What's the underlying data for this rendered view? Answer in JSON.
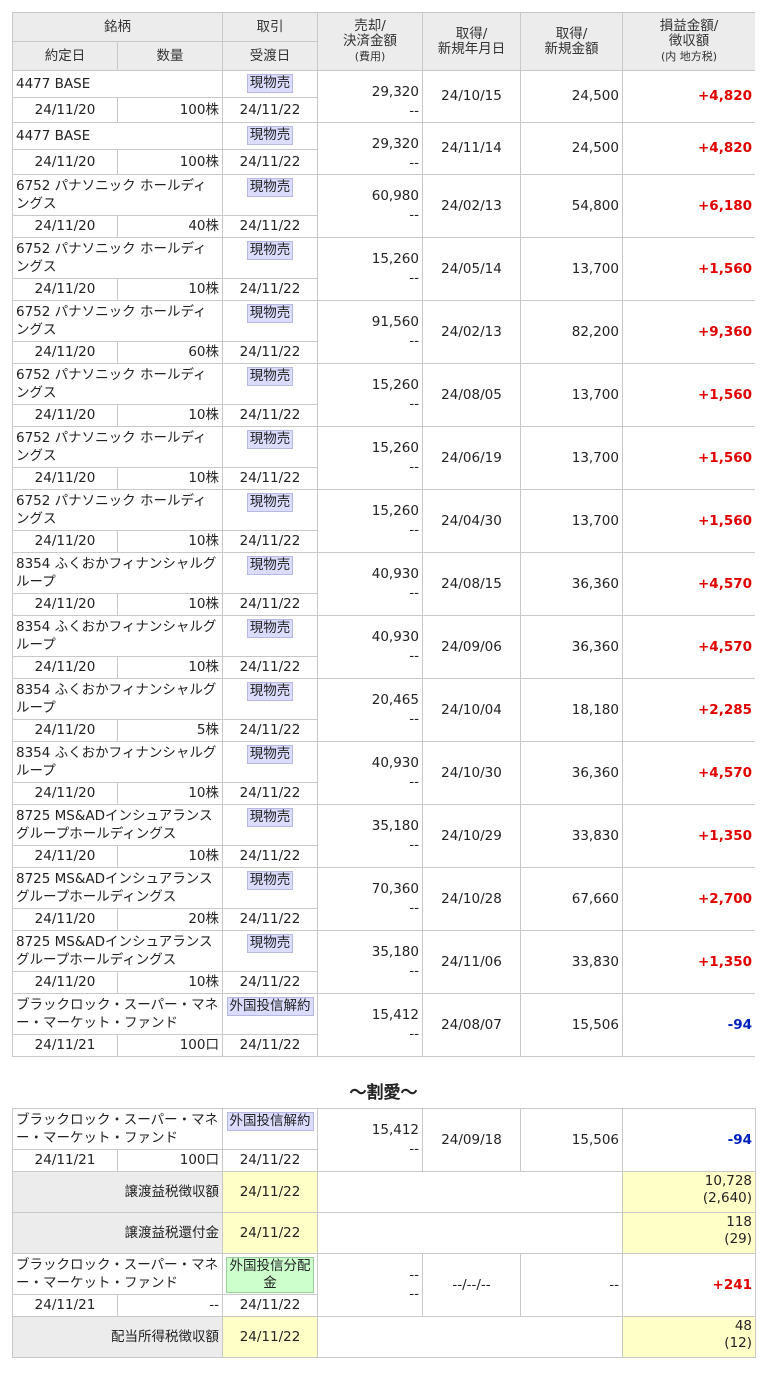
{
  "header": {
    "name": "銘柄",
    "date": "約定日",
    "qty": "数量",
    "trade": "取引",
    "settle": "受渡日",
    "sale": [
      "売却/",
      "決済金額",
      "(費用)"
    ],
    "acq_date": [
      "取得/",
      "新規年月日"
    ],
    "acq_amount": [
      "取得/",
      "新規金額"
    ],
    "pnl": [
      "損益金額/",
      "徴収額",
      "(内 地方税)"
    ]
  },
  "trades": [
    {
      "name": "4477 BASE",
      "trade": "現物売",
      "sale": "29,320",
      "fee": "--",
      "acq_date": "24/10/15",
      "acq_amount": "24,500",
      "pnl": "+4,820",
      "date": "24/11/20",
      "qty": "100株",
      "settle": "24/11/22"
    },
    {
      "name": "4477 BASE",
      "trade": "現物売",
      "sale": "29,320",
      "fee": "--",
      "acq_date": "24/11/14",
      "acq_amount": "24,500",
      "pnl": "+4,820",
      "date": "24/11/20",
      "qty": "100株",
      "settle": "24/11/22"
    },
    {
      "name": "6752 パナソニック ホールディングス",
      "trade": "現物売",
      "sale": "60,980",
      "fee": "--",
      "acq_date": "24/02/13",
      "acq_amount": "54,800",
      "pnl": "+6,180",
      "date": "24/11/20",
      "qty": "40株",
      "settle": "24/11/22"
    },
    {
      "name": "6752 パナソニック ホールディングス",
      "trade": "現物売",
      "sale": "15,260",
      "fee": "--",
      "acq_date": "24/05/14",
      "acq_amount": "13,700",
      "pnl": "+1,560",
      "date": "24/11/20",
      "qty": "10株",
      "settle": "24/11/22"
    },
    {
      "name": "6752 パナソニック ホールディングス",
      "trade": "現物売",
      "sale": "91,560",
      "fee": "--",
      "acq_date": "24/02/13",
      "acq_amount": "82,200",
      "pnl": "+9,360",
      "date": "24/11/20",
      "qty": "60株",
      "settle": "24/11/22"
    },
    {
      "name": "6752 パナソニック ホールディングス",
      "trade": "現物売",
      "sale": "15,260",
      "fee": "--",
      "acq_date": "24/08/05",
      "acq_amount": "13,700",
      "pnl": "+1,560",
      "date": "24/11/20",
      "qty": "10株",
      "settle": "24/11/22"
    },
    {
      "name": "6752 パナソニック ホールディングス",
      "trade": "現物売",
      "sale": "15,260",
      "fee": "--",
      "acq_date": "24/06/19",
      "acq_amount": "13,700",
      "pnl": "+1,560",
      "date": "24/11/20",
      "qty": "10株",
      "settle": "24/11/22"
    },
    {
      "name": "6752 パナソニック ホールディングス",
      "trade": "現物売",
      "sale": "15,260",
      "fee": "--",
      "acq_date": "24/04/30",
      "acq_amount": "13,700",
      "pnl": "+1,560",
      "date": "24/11/20",
      "qty": "10株",
      "settle": "24/11/22"
    },
    {
      "name": "8354 ふくおかフィナンシャルグループ",
      "trade": "現物売",
      "sale": "40,930",
      "fee": "--",
      "acq_date": "24/08/15",
      "acq_amount": "36,360",
      "pnl": "+4,570",
      "date": "24/11/20",
      "qty": "10株",
      "settle": "24/11/22"
    },
    {
      "name": "8354 ふくおかフィナンシャルグループ",
      "trade": "現物売",
      "sale": "40,930",
      "fee": "--",
      "acq_date": "24/09/06",
      "acq_amount": "36,360",
      "pnl": "+4,570",
      "date": "24/11/20",
      "qty": "10株",
      "settle": "24/11/22"
    },
    {
      "name": "8354 ふくおかフィナンシャルグループ",
      "trade": "現物売",
      "sale": "20,465",
      "fee": "--",
      "acq_date": "24/10/04",
      "acq_amount": "18,180",
      "pnl": "+2,285",
      "date": "24/11/20",
      "qty": "5株",
      "settle": "24/11/22"
    },
    {
      "name": "8354 ふくおかフィナンシャルグループ",
      "trade": "現物売",
      "sale": "40,930",
      "fee": "--",
      "acq_date": "24/10/30",
      "acq_amount": "36,360",
      "pnl": "+4,570",
      "date": "24/11/20",
      "qty": "10株",
      "settle": "24/11/22"
    },
    {
      "name": "8725 MS&ADインシュアランスグループホールディングス",
      "trade": "現物売",
      "sale": "35,180",
      "fee": "--",
      "acq_date": "24/10/29",
      "acq_amount": "33,830",
      "pnl": "+1,350",
      "date": "24/11/20",
      "qty": "10株",
      "settle": "24/11/22"
    },
    {
      "name": "8725 MS&ADインシュアランスグループホールディングス",
      "trade": "現物売",
      "sale": "70,360",
      "fee": "--",
      "acq_date": "24/10/28",
      "acq_amount": "67,660",
      "pnl": "+2,700",
      "date": "24/11/20",
      "qty": "20株",
      "settle": "24/11/22"
    },
    {
      "name": "8725 MS&ADインシュアランスグループホールディングス",
      "trade": "現物売",
      "sale": "35,180",
      "fee": "--",
      "acq_date": "24/11/06",
      "acq_amount": "33,830",
      "pnl": "+1,350",
      "date": "24/11/20",
      "qty": "10株",
      "settle": "24/11/22"
    },
    {
      "name": "ブラックロック・スーパー・マネー・マーケット・ファンド",
      "trade": "外国投信解約",
      "sale": "15,412",
      "fee": "--",
      "acq_date": "24/08/07",
      "acq_amount": "15,506",
      "pnl": "-94",
      "date": "24/11/21",
      "qty": "100口",
      "settle": "24/11/22"
    }
  ],
  "omission": "〜割愛〜",
  "trades_after": [
    {
      "name": "ブラックロック・スーパー・マネー・マーケット・ファンド",
      "trade": "外国投信解約",
      "sale": "15,412",
      "fee": "--",
      "acq_date": "24/09/18",
      "acq_amount": "15,506",
      "pnl": "-94",
      "date": "24/11/21",
      "qty": "100口",
      "settle": "24/11/22"
    },
    {
      "label": "譲渡益税徴収額",
      "settle": "24/11/22",
      "amount": "10,728",
      "tax": "(2,640)"
    },
    {
      "label": "譲渡益税還付金",
      "settle": "24/11/22",
      "amount": "118",
      "tax": "(29)"
    },
    {
      "name": "ブラックロック・スーパー・マネー・マーケット・ファンド",
      "trade": "外国投信分配金",
      "badge_color": "#ccffcc",
      "sale": "--",
      "fee": "--",
      "acq_date": "--/--/--",
      "acq_amount": "--",
      "pnl": "+241",
      "date": "24/11/21",
      "qty": "--",
      "settle": "24/11/22"
    },
    {
      "label": "配当所得税徴収額",
      "settle": "24/11/22",
      "amount": "48",
      "tax": "(12)"
    }
  ]
}
